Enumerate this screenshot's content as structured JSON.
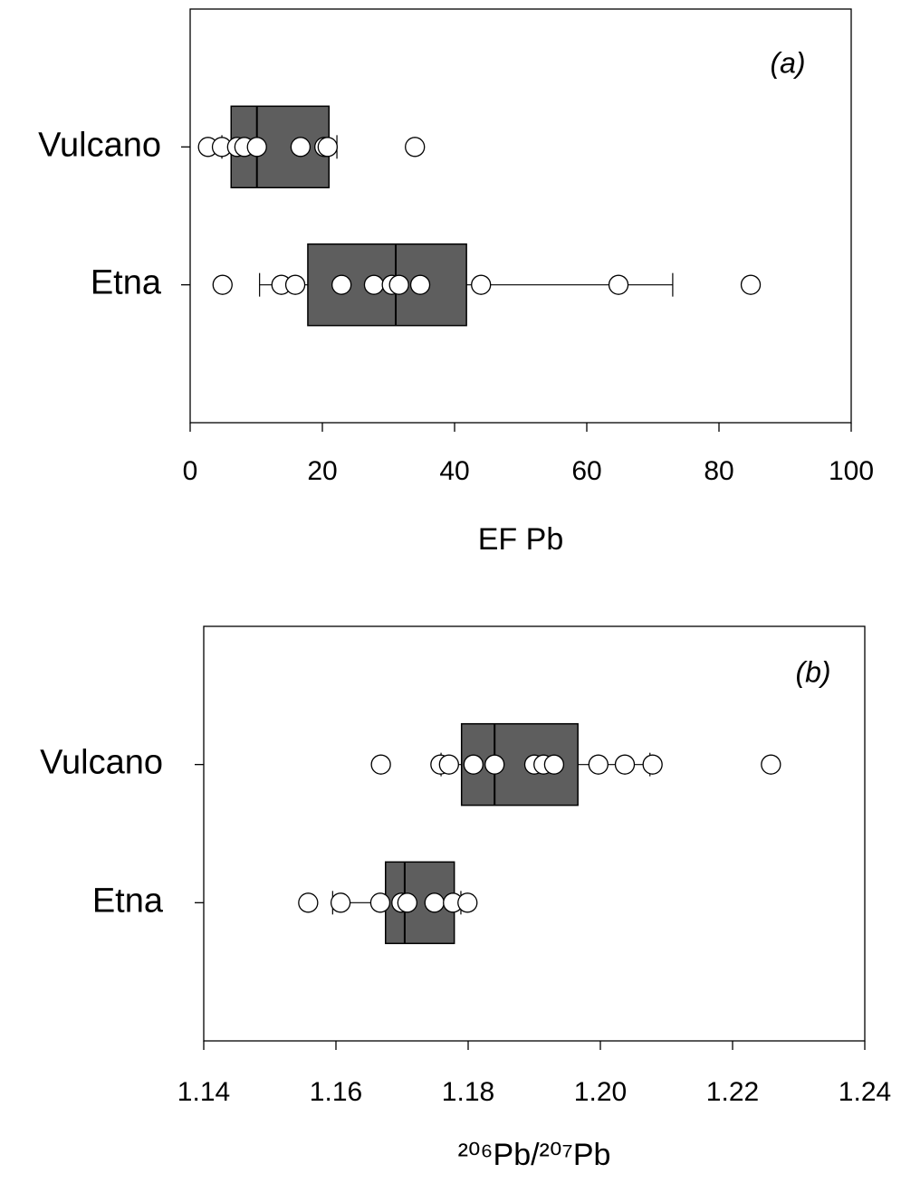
{
  "chart_data": [
    {
      "type": "boxplot",
      "annotation": "(a)",
      "x_label": "EF Pb",
      "categories": [
        "Vulcano",
        "Etna"
      ],
      "boxes": [
        {
          "whisker_low": 4.8,
          "q1": 6.2,
          "median": 10.1,
          "q3": 21,
          "whisker_high": 22.2
        },
        {
          "whisker_low": 10.5,
          "q1": 17.8,
          "median": 31.1,
          "q3": 41.8,
          "whisker_high": 73
        }
      ],
      "points": [
        [
          2.7,
          4.8,
          7.1,
          8.2,
          10.1,
          16.7,
          20.3,
          20.8,
          34.0
        ],
        [
          4.9,
          13.8,
          15.9,
          22.9,
          27.8,
          30.5,
          31.6,
          34.8,
          44.0,
          64.8,
          84.8
        ]
      ],
      "box_color": "#5e5e5e",
      "point_color": "#ffffff",
      "xlim": [
        0,
        100
      ],
      "xticks": [
        0,
        20,
        40,
        60,
        80,
        100
      ]
    },
    {
      "type": "boxplot",
      "annotation": "(b)",
      "x_label": "²⁰⁶Pb/²⁰⁷Pb",
      "categories": [
        "Vulcano",
        "Etna"
      ],
      "boxes": [
        {
          "whisker_low": 1.1759,
          "q1": 1.179,
          "median": 1.184,
          "q3": 1.1966,
          "whisker_high": 1.2075
        },
        {
          "whisker_low": 1.1595,
          "q1": 1.1675,
          "median": 1.1704,
          "q3": 1.1779,
          "whisker_high": 1.1789
        }
      ],
      "points": [
        [
          1.1668,
          1.1758,
          1.1771,
          1.1808,
          1.184,
          1.19,
          1.1914,
          1.193,
          1.1997,
          1.2037,
          1.2079,
          1.2258
        ],
        [
          1.1558,
          1.1607,
          1.1667,
          1.1699,
          1.1708,
          1.1749,
          1.1777,
          1.1799
        ]
      ],
      "box_color": "#5e5e5e",
      "point_color": "#ffffff",
      "xlim": [
        1.14,
        1.24
      ],
      "xticks": [
        1.14,
        1.16,
        1.18,
        {
          "value": 1.2,
          "label": "1.20"
        },
        1.22,
        1.24
      ]
    }
  ]
}
